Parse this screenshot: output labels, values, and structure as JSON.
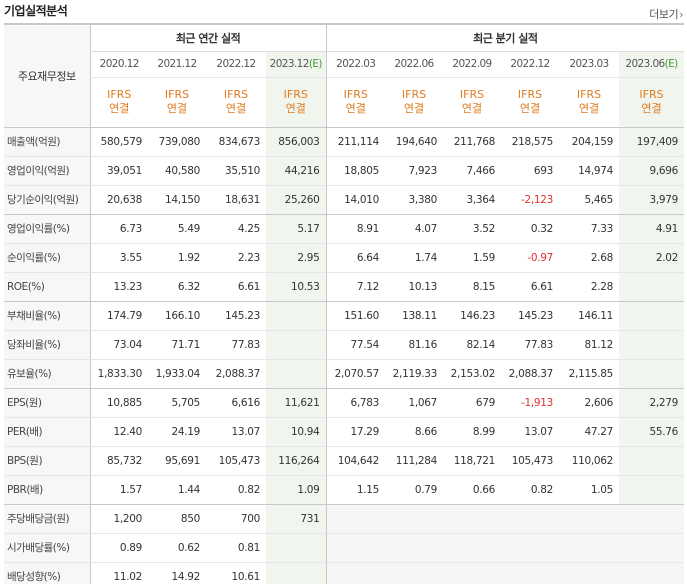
{
  "section_title": "기업실적분석",
  "more_label": "더보기",
  "row_header_label": "주요재무정보",
  "annual_group_label": "최근 연간 실적",
  "quarter_group_label": "최근 분기 실적",
  "annual_periods": [
    "2020.12",
    "2021.12",
    "2022.12",
    "2023.12"
  ],
  "annual_estimate_suffix": "(E)",
  "quarter_periods": [
    "2022.03",
    "2022.06",
    "2022.09",
    "2022.12",
    "2023.03",
    "2023.06"
  ],
  "quarter_estimate_suffix": "(E)",
  "basis_line1": "IFRS",
  "basis_line2": "연결",
  "rows": [
    {
      "label": "매출액(억원)",
      "values": [
        "580,579",
        "739,080",
        "834,673",
        "856,003",
        "211,114",
        "194,640",
        "211,768",
        "218,575",
        "204,159",
        "197,409"
      ]
    },
    {
      "label": "영업이익(억원)",
      "values": [
        "39,051",
        "40,580",
        "35,510",
        "44,216",
        "18,805",
        "7,923",
        "7,466",
        "693",
        "14,974",
        "9,696"
      ]
    },
    {
      "label": "당기순이익(억원)",
      "values": [
        "20,638",
        "14,150",
        "18,631",
        "25,260",
        "14,010",
        "3,380",
        "3,364",
        "-2,123",
        "5,465",
        "3,979"
      ]
    },
    {
      "label": "영업이익률(%)",
      "values": [
        "6.73",
        "5.49",
        "4.25",
        "5.17",
        "8.91",
        "4.07",
        "3.52",
        "0.32",
        "7.33",
        "4.91"
      ]
    },
    {
      "label": "순이익률(%)",
      "values": [
        "3.55",
        "1.92",
        "2.23",
        "2.95",
        "6.64",
        "1.74",
        "1.59",
        "-0.97",
        "2.68",
        "2.02"
      ]
    },
    {
      "label": "ROE(%)",
      "values": [
        "13.23",
        "6.32",
        "6.61",
        "10.53",
        "7.12",
        "10.13",
        "8.15",
        "6.61",
        "2.28",
        ""
      ]
    },
    {
      "label": "부채비율(%)",
      "values": [
        "174.79",
        "166.10",
        "145.23",
        "",
        "151.60",
        "138.11",
        "146.23",
        "145.23",
        "146.11",
        ""
      ]
    },
    {
      "label": "당좌비율(%)",
      "values": [
        "73.04",
        "71.71",
        "77.83",
        "",
        "77.54",
        "81.16",
        "82.14",
        "77.83",
        "81.12",
        ""
      ]
    },
    {
      "label": "유보율(%)",
      "values": [
        "1,833.30",
        "1,933.04",
        "2,088.37",
        "",
        "2,070.57",
        "2,119.33",
        "2,153.02",
        "2,088.37",
        "2,115.85",
        ""
      ]
    },
    {
      "label": "EPS(원)",
      "values": [
        "10,885",
        "5,705",
        "6,616",
        "11,621",
        "6,783",
        "1,067",
        "679",
        "-1,913",
        "2,606",
        "2,279"
      ]
    },
    {
      "label": "PER(배)",
      "values": [
        "12.40",
        "24.19",
        "13.07",
        "10.94",
        "17.29",
        "8.66",
        "8.99",
        "13.07",
        "47.27",
        "55.76"
      ]
    },
    {
      "label": "BPS(원)",
      "values": [
        "85,732",
        "95,691",
        "105,473",
        "116,264",
        "104,642",
        "111,284",
        "118,721",
        "105,473",
        "110,062",
        ""
      ]
    },
    {
      "label": "PBR(배)",
      "values": [
        "1.57",
        "1.44",
        "0.82",
        "1.09",
        "1.15",
        "0.79",
        "0.66",
        "0.82",
        "1.05",
        ""
      ]
    },
    {
      "label": "주당배당금(원)",
      "values": [
        "1,200",
        "850",
        "700",
        "731",
        "",
        "",
        "",
        "",
        "",
        ""
      ]
    },
    {
      "label": "시가배당률(%)",
      "values": [
        "0.89",
        "0.62",
        "0.81",
        "",
        "",
        "",
        "",
        "",
        "",
        ""
      ]
    },
    {
      "label": "배당성향(%)",
      "values": [
        "11.02",
        "14.92",
        "10.61",
        "",
        "",
        "",
        "",
        "",
        "",
        ""
      ]
    }
  ],
  "colors": {
    "negative": "#e03030",
    "basis": "#e07b1f",
    "estimate_bg": "#f0f6ee",
    "estimate_mark": "#4a9a3a"
  }
}
